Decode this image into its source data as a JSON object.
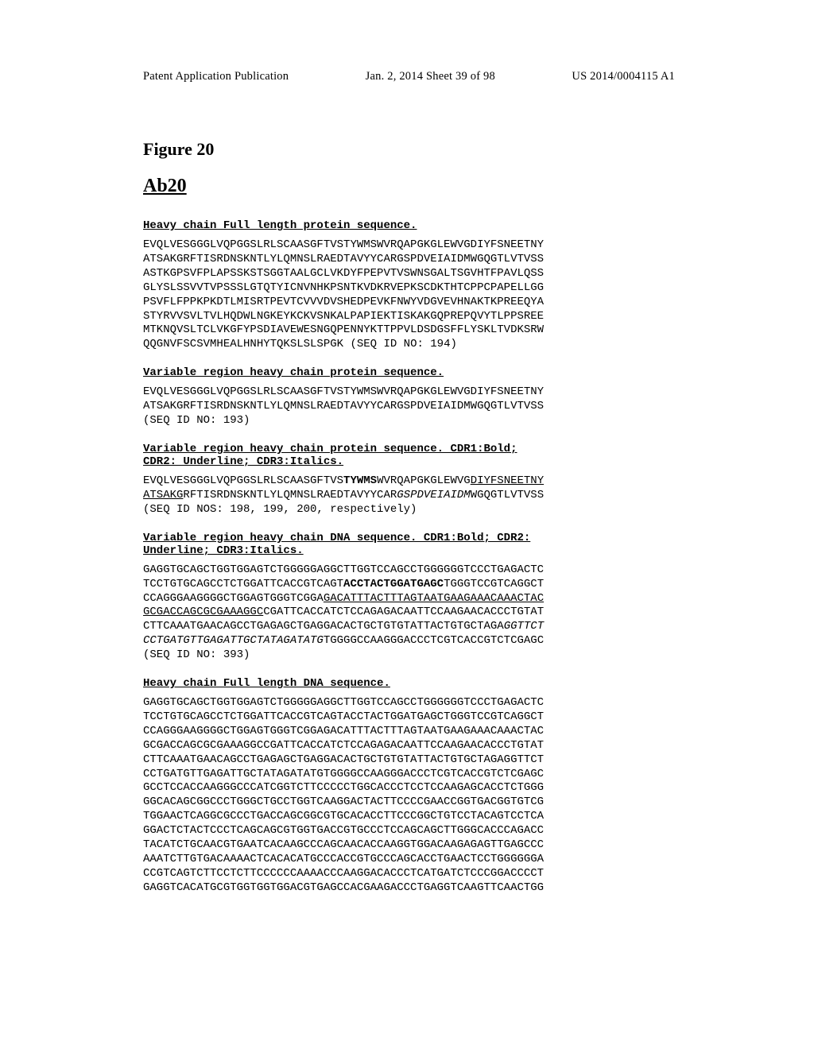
{
  "header": {
    "left": "Patent Application Publication",
    "center": "Jan. 2, 2014  Sheet 39 of 98",
    "right": "US 2014/0004115 A1"
  },
  "figure_label": "Figure 20",
  "ab_label": "Ab20",
  "sections": {
    "hc_full_protein": {
      "title": "Heavy chain Full length protein sequence.",
      "seq_id": "(SEQ ID NO: 194)",
      "lines": [
        "EVQLVESGGGLVQPGGSLRLSCAASGFTVSTYWMSWVRQAPGKGLEWVGDIYFSNEETNY",
        "ATSAKGRFTISRDNSKNTLYLQMNSLRAEDTAVYYCARGSPDVEIAIDMWGQGTLVTVSS",
        "ASTKGPSVFPLAPSSKSTSGGTAALGCLVKDYFPEPVTVSWNSGALTSGVHTFPAVLQSS",
        "GLYSLSSVVTVPSSSLGTQTYICNVNHKPSNTKVDKRVEPKSCDKTHTCPPCPAPELLGG",
        "PSVFLFPPKPKDTLMISRTPEVTCVVVDVSHEDPEVKFNWYVDGVEVHNAKTKPREEQYA",
        "STYRVVSVLTVLHQDWLNGKEYKCKVSNKALPAPIEKTISKAKGQPREPQVYTLPPSREE",
        "MTKNQVSLTCLVKGFYPSDIAVEWESNGQPENNYKTTPPVLDSDGSFFLYSKLTVDKSRW",
        "QQGNVFSCSVMHEALHNHYTQKSLSLSPGK"
      ]
    },
    "vr_hc_protein": {
      "title": "Variable region heavy chain protein sequence.",
      "seq_id": "(SEQ ID NO: 193)",
      "lines": [
        "EVQLVESGGGLVQPGGSLRLSCAASGFTVSTYWMSWVRQAPGKGLEWVGDIYFSNEETNY",
        "ATSAKGRFTISRDNSKNTLYLQMNSLRAEDTAVYYCARGSPDVEIAIDMWGQGTLVTVSS"
      ]
    },
    "vr_hc_protein_cdr": {
      "title": "Variable region heavy chain protein sequence. CDR1:Bold;\nCDR2: Underline; CDR3:Italics.",
      "seq_id": "(SEQ ID NOS: 198, 199, 200, respectively)",
      "line1_pre": "EVQLVESGGGLVQPGGSLRLSCAASGFTVS",
      "line1_cdr1": "TYWMS",
      "line1_mid": "WVRQAPGKGLEWVG",
      "line1_cdr2a": "DIYFSNEETNY",
      "line2_cdr2b": "ATSAKG",
      "line2_mid": "RFTISRDNSKNTLYLQMNSLRAEDTAVYYCAR",
      "line2_cdr3": "GSPDVEIAIDM",
      "line2_post": "WGQGTLVTVSS"
    },
    "vr_hc_dna": {
      "title": "Variable region heavy chain DNA sequence. CDR1:Bold; CDR2:\nUnderline; CDR3:Italics.",
      "seq_id": "(SEQ ID NO: 393)",
      "line1": "GAGGTGCAGCTGGTGGAGTCTGGGGGAGGCTTGGTCCAGCCTGGGGGGTCCCTGAGACTC",
      "line2_pre": "TCCTGTGCAGCCTCTGGATTCACCGTCAGT",
      "line2_cdr1": "ACCTACTGGATGAGC",
      "line2_post": "TGGGTCCGTCAGGCT",
      "line3_pre": "CCAGGGAAGGGGCTGGAGTGGGTCGGA",
      "line3_cdr2": "GACATTTACTTTAGTAATGAAGAAACAAACTAC",
      "line4_cdr2": "GCGACCAGCGCGAAAGGC",
      "line4_post": "CGATTCACCATCTCCAGAGACAATTCCAAGAACACCCTGTAT",
      "line5_pre": "CTTCAAATGAACAGCCTGAGAGCTGAGGACACTGCTGTGTATTACTGTGCTAGA",
      "line5_cdr3": "GGTTCT",
      "line6_cdr3": "CCTGATGTTGAGATTGCTATAGATATG",
      "line6_post": "TGGGGCCAAGGGACCCTCGTCACCGTCTCGAGC"
    },
    "hc_full_dna": {
      "title": "Heavy chain Full length DNA sequence.",
      "lines": [
        "GAGGTGCAGCTGGTGGAGTCTGGGGGAGGCTTGGTCCAGCCTGGGGGGTCCCTGAGACTC",
        "TCCTGTGCAGCCTCTGGATTCACCGTCAGTACCTACTGGATGAGCTGGGTCCGTCAGGCT",
        "CCAGGGAAGGGGCTGGAGTGGGTCGGAGACATTTACTTTAGTAATGAAGAAACAAACTAC",
        "GCGACCAGCGCGAAAGGCCGATTCACCATCTCCAGAGACAATTCCAAGAACACCCTGTAT",
        "CTTCAAATGAACAGCCTGAGAGCTGAGGACACTGCTGTGTATTACTGTGCTAGAGGTTCT",
        "CCTGATGTTGAGATTGCTATAGATATGTGGGGCCAAGGGACCCTCGTCACCGTCTCGAGC",
        "GCCTCCACCAAGGGCCCATCGGTCTTCCCCCTGGCACCCTCCTCCAAGAGCACCTCTGGG",
        "GGCACAGCGGCCCTGGGCTGCCTGGTCAAGGACTACTTCCCCGAACCGGTGACGGTGTCG",
        "TGGAACTCAGGCGCCCTGACCAGCGGCGTGCACACCTTCCCGGCTGTCCTACAGTCCTCA",
        "GGACTCTACTCCCTCAGCAGCGTGGTGACCGTGCCCTCCAGCAGCTTGGGCACCCAGACC",
        "TACATCTGCAACGTGAATCACAAGCCCAGCAACACCAAGGTGGACAAGAGAGTTGAGCCC",
        "AAATCTTGTGACAAAACTCACACATGCCCACCGTGCCCAGCACCTGAACTCCTGGGGGGA",
        "CCGTCAGTCTTCCTCTTCCCCCCAAAACCCAAGGACACCCTCATGATCTCCCGGACCCCT",
        "GAGGTCACATGCGTGGTGGTGGACGTGAGCCACGAAGACCCTGAGGTCAAGTTCAACTGG"
      ]
    }
  },
  "style": {
    "page_bg": "#ffffff",
    "text_color": "#000000",
    "header_fontsize": 14.5,
    "figlabel_fontsize": 22,
    "ablabel_fontsize": 24,
    "mono_fontsize": 14,
    "mono_lineheight": 1.28
  }
}
